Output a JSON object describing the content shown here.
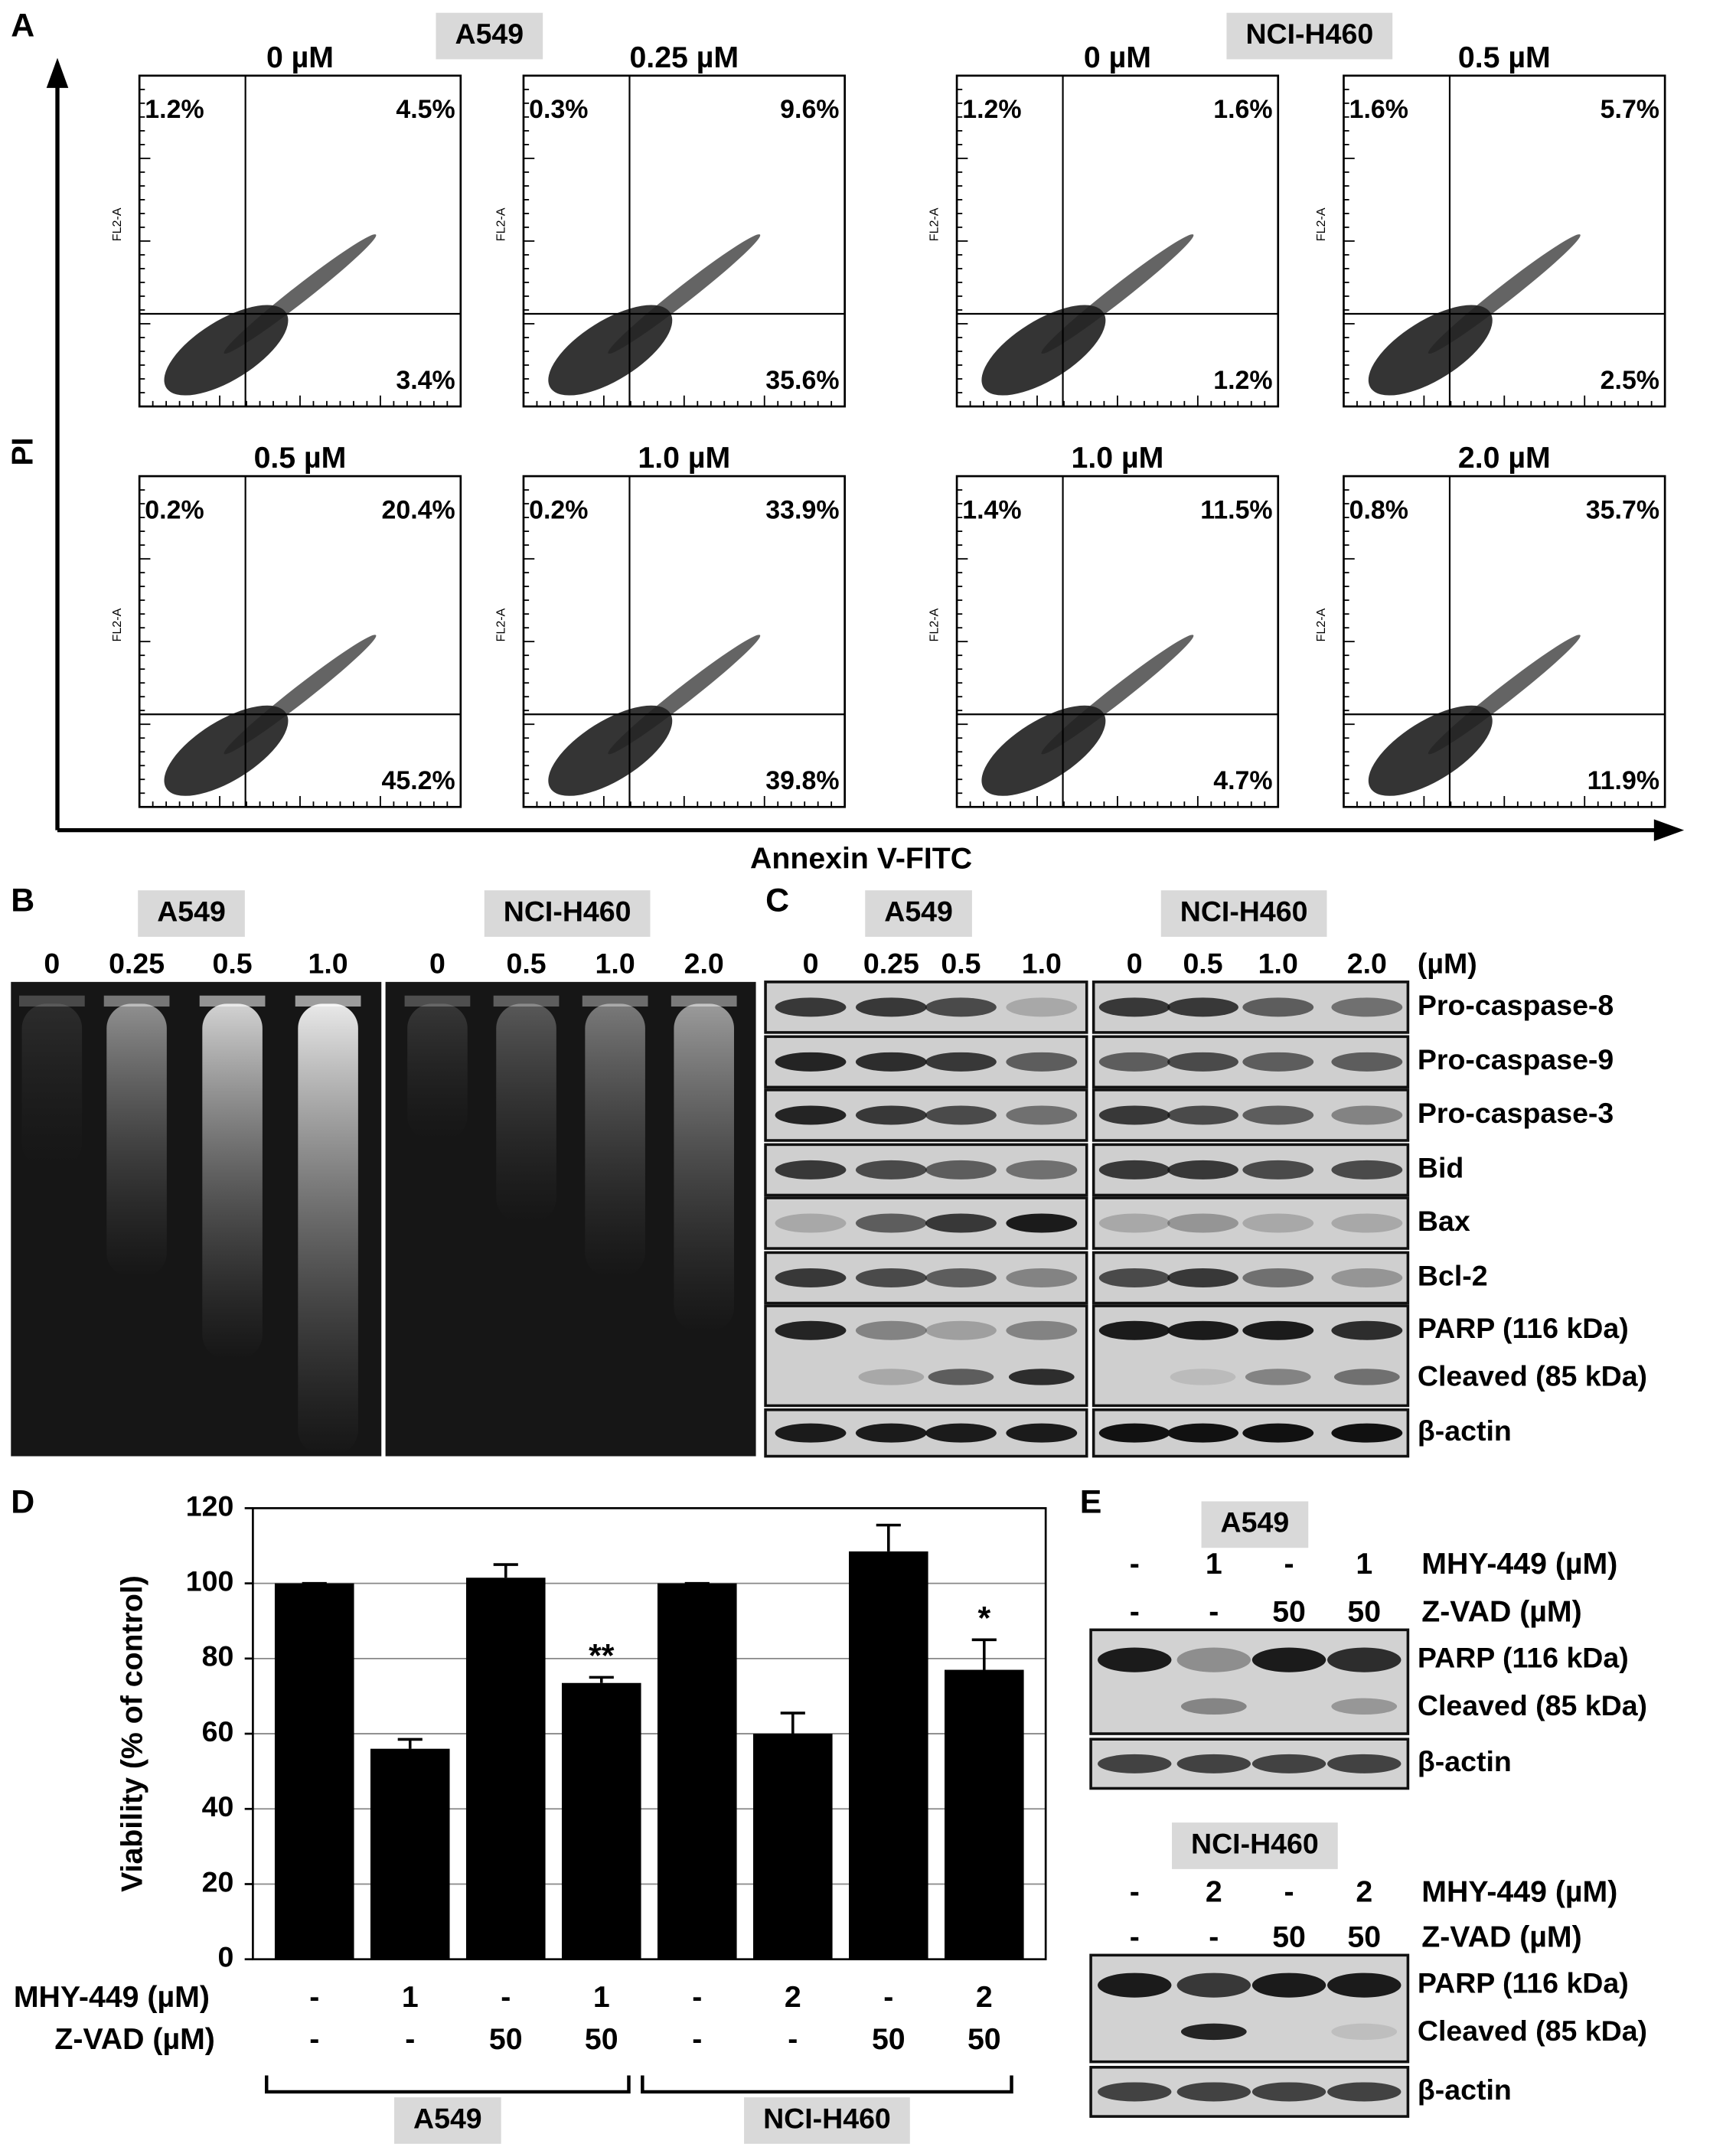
{
  "panel_a": {
    "letter": "A",
    "y_label": "PI",
    "x_label": "Annexin V-FITC",
    "plot_axis_label": "FL2-A",
    "groups": [
      {
        "cell": "A549",
        "plots": [
          {
            "dose": "0 µM",
            "upper_left": "1.2%",
            "upper_right": "4.5%",
            "lower_right": "3.4%"
          },
          {
            "dose": "0.25 µM",
            "upper_left": "0.3%",
            "upper_right": "9.6%",
            "lower_right": "35.6%"
          },
          {
            "dose": "0.5 µM",
            "upper_left": "0.2%",
            "upper_right": "20.4%",
            "lower_right": "45.2%"
          },
          {
            "dose": "1.0 µM",
            "upper_left": "0.2%",
            "upper_right": "33.9%",
            "lower_right": "39.8%"
          }
        ]
      },
      {
        "cell": "NCI-H460",
        "plots": [
          {
            "dose": "0 µM",
            "upper_left": "1.2%",
            "upper_right": "1.6%",
            "lower_right": "1.2%"
          },
          {
            "dose": "0.5 µM",
            "upper_left": "1.6%",
            "upper_right": "5.7%",
            "lower_right": "2.5%"
          },
          {
            "dose": "1.0 µM",
            "upper_left": "1.4%",
            "upper_right": "11.5%",
            "lower_right": "4.7%"
          },
          {
            "dose": "2.0 µM",
            "upper_left": "0.8%",
            "upper_right": "35.7%",
            "lower_right": "11.9%"
          }
        ]
      }
    ]
  },
  "panel_b": {
    "letter": "B",
    "groups": [
      {
        "cell": "A549",
        "lanes": [
          "0",
          "0.25",
          "0.5",
          "1.0"
        ]
      },
      {
        "cell": "NCI-H460",
        "lanes": [
          "0",
          "0.5",
          "1.0",
          "2.0"
        ]
      }
    ]
  },
  "panel_c": {
    "letter": "C",
    "unit": "(µM)",
    "groups": [
      {
        "cell": "A549",
        "lanes": [
          "0",
          "0.25",
          "0.5",
          "1.0"
        ]
      },
      {
        "cell": "NCI-H460",
        "lanes": [
          "0",
          "0.5",
          "1.0",
          "2.0"
        ]
      }
    ],
    "rows": [
      {
        "labels": [
          "Pro-caspase-8"
        ]
      },
      {
        "labels": [
          "Pro-caspase-9"
        ]
      },
      {
        "labels": [
          "Pro-caspase-3"
        ]
      },
      {
        "labels": [
          "Bid"
        ]
      },
      {
        "labels": [
          "Bax"
        ]
      },
      {
        "labels": [
          "Bcl-2"
        ]
      },
      {
        "labels": [
          "PARP (116 kDa)",
          "Cleaved (85 kDa)"
        ]
      },
      {
        "labels": [
          "β-actin"
        ]
      }
    ]
  },
  "chart_data": {
    "type": "bar",
    "panel_label": "D",
    "y_label": "Viability (% of control)",
    "values": [
      100,
      56,
      101.5,
      73.5,
      100,
      60,
      108.5,
      77
    ],
    "errors": [
      0,
      2.5,
      3.5,
      1.5,
      0,
      5.5,
      7,
      8
    ],
    "significance": [
      null,
      null,
      null,
      "**",
      null,
      null,
      null,
      "*"
    ],
    "color": "#000000",
    "ylim": [
      0,
      120
    ],
    "yticks": [
      0,
      20,
      40,
      60,
      80,
      100,
      120
    ],
    "grid": true,
    "rows": [
      {
        "label": "MHY-449 (µM)",
        "levels": [
          "-",
          "1",
          "-",
          "1",
          "-",
          "2",
          "-",
          "2"
        ]
      },
      {
        "label": "Z-VAD (µM)",
        "levels": [
          "-",
          "-",
          "50",
          "50",
          "-",
          "-",
          "50",
          "50"
        ]
      }
    ],
    "groups": [
      "A549",
      "NCI-H460"
    ]
  },
  "panel_e": {
    "letter": "E",
    "blots": [
      {
        "cell": "A549",
        "rows": [
          {
            "label": "MHY-449 (µM)",
            "levels": [
              "-",
              "1",
              "-",
              "1"
            ]
          },
          {
            "label": "Z-VAD (µM)",
            "levels": [
              "-",
              "-",
              "50",
              "50"
            ]
          }
        ],
        "bands": [
          "PARP (116 kDa)",
          "Cleaved (85 kDa)",
          "β-actin"
        ]
      },
      {
        "cell": "NCI-H460",
        "rows": [
          {
            "label": "MHY-449 (µM)",
            "levels": [
              "-",
              "2",
              "-",
              "2"
            ]
          },
          {
            "label": "Z-VAD (µM)",
            "levels": [
              "-",
              "-",
              "50",
              "50"
            ]
          }
        ],
        "bands": [
          "PARP (116 kDa)",
          "Cleaved (85 kDa)",
          "β-actin"
        ]
      }
    ]
  }
}
